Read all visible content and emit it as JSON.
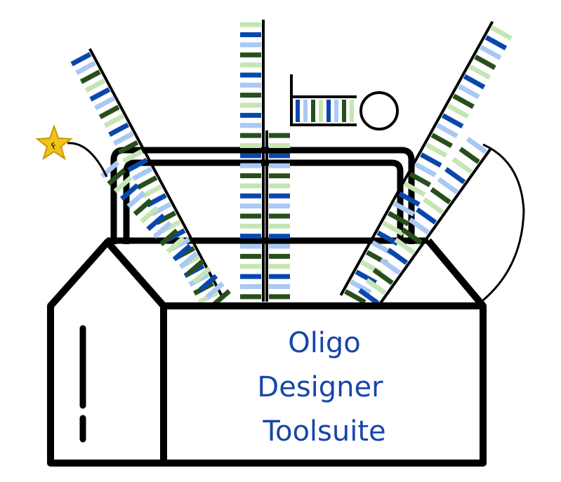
{
  "logo": {
    "title_lines": [
      "Oligo",
      "Designer",
      "Toolsuite"
    ],
    "star_label": "F"
  },
  "colors": {
    "outline": "#000000",
    "dark_blue": "#0a47ad",
    "light_blue": "#a9c8f4",
    "dark_green": "#274f1c",
    "light_green": "#c5e6b3",
    "star": "#f2c21b",
    "text": "#1846a8"
  },
  "icons": [
    "toolbox-icon",
    "dna-strand-icon",
    "hairpin-probe-icon",
    "fluorophore-star-icon"
  ]
}
